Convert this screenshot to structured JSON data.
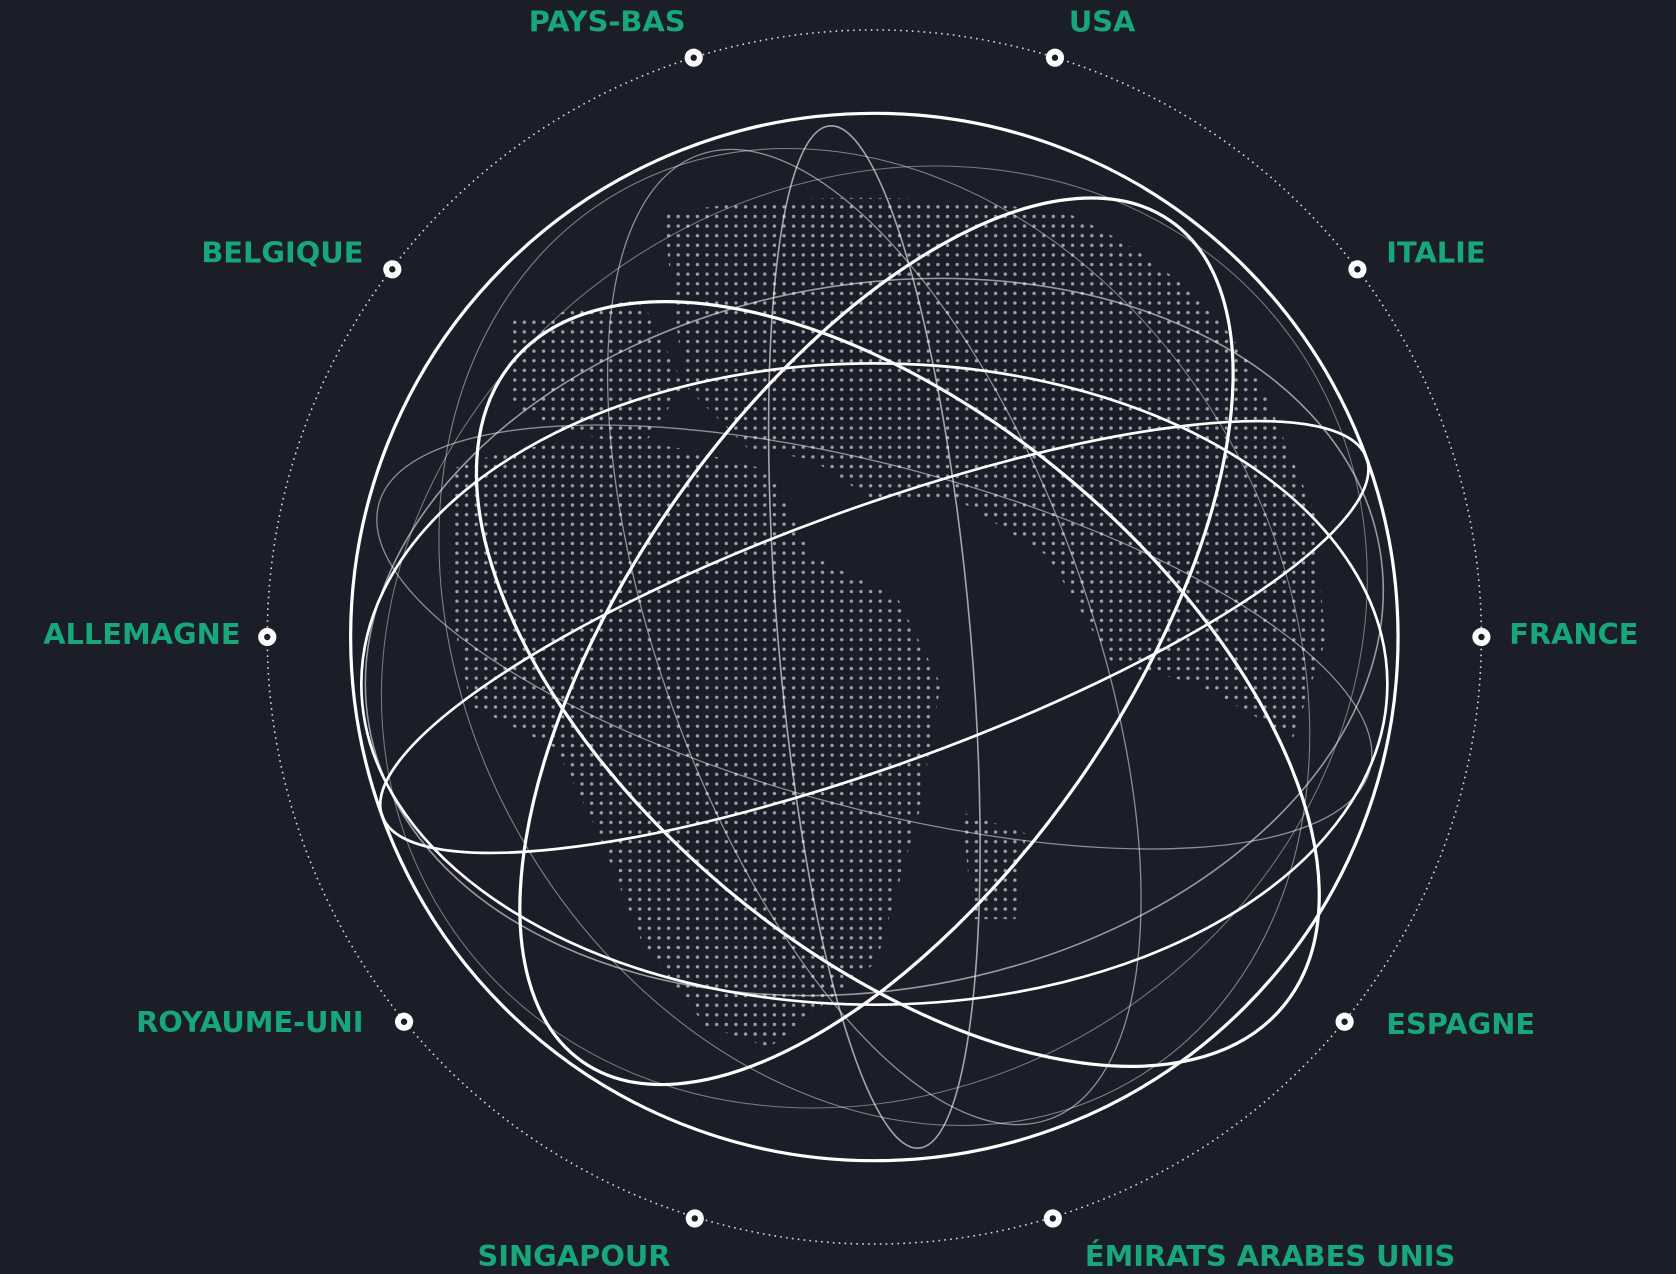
{
  "locations": [
    {
      "label": "PAYS-BAS"
    },
    {
      "label": "USA"
    },
    {
      "label": "BELGIQUE"
    },
    {
      "label": "ITALIE"
    },
    {
      "label": "ALLEMAGNE"
    },
    {
      "label": "FRANCE"
    },
    {
      "label": "ROYAUME-UNI"
    },
    {
      "label": "ESPAGNE"
    },
    {
      "label": "SINGAPOUR"
    },
    {
      "label": "ÉMIRATS ARABES UNIS"
    }
  ]
}
